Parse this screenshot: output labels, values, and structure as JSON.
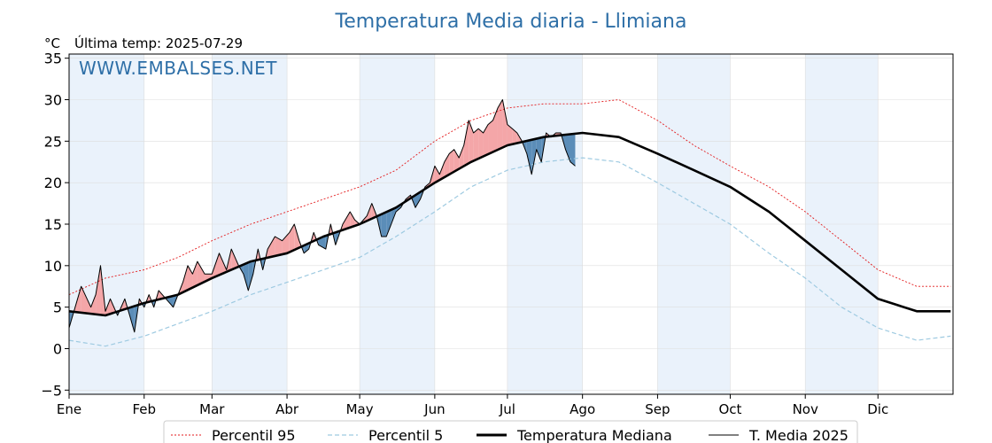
{
  "chart_data": {
    "type": "line",
    "title": "Temperatura Media diaria - Llimiana",
    "unit_label": "°C",
    "last_temp_label": "Última temp: 2025-07-29",
    "watermark": "WWW.EMBALSES.NET",
    "ylim": [
      -5.5,
      35.5
    ],
    "yticks": [
      -5,
      0,
      5,
      10,
      15,
      20,
      25,
      30,
      35
    ],
    "ytick_labels": [
      "−5",
      "0",
      "5",
      "10",
      "15",
      "20",
      "25",
      "30",
      "35"
    ],
    "xlim": [
      0,
      365
    ],
    "months": [
      {
        "label": "Ene",
        "start": 0
      },
      {
        "label": "Feb",
        "start": 31
      },
      {
        "label": "Mar",
        "start": 59
      },
      {
        "label": "Abr",
        "start": 90
      },
      {
        "label": "May",
        "start": 120
      },
      {
        "label": "Jun",
        "start": 151
      },
      {
        "label": "Jul",
        "start": 181
      },
      {
        "label": "Ago",
        "start": 212
      },
      {
        "label": "Sep",
        "start": 243
      },
      {
        "label": "Oct",
        "start": 273
      },
      {
        "label": "Nov",
        "start": 304
      },
      {
        "label": "Dic",
        "start": 334
      }
    ],
    "grid": true,
    "legend_position": "bottom-center",
    "colors": {
      "p95": "#e31a1c",
      "p5": "#9ecae1",
      "median": "#000000",
      "year": "#000000",
      "above_fill": "#f4a6a8",
      "below_fill": "#5b8db8",
      "band": "#eaf2fb"
    },
    "series": [
      {
        "name": "Percentil 95",
        "key": "p95",
        "points": [
          [
            0,
            6.5
          ],
          [
            15,
            8.5
          ],
          [
            31,
            9.5
          ],
          [
            45,
            11
          ],
          [
            59,
            13
          ],
          [
            75,
            15
          ],
          [
            90,
            16.5
          ],
          [
            105,
            18
          ],
          [
            120,
            19.5
          ],
          [
            135,
            21.5
          ],
          [
            151,
            25
          ],
          [
            166,
            27.5
          ],
          [
            181,
            29
          ],
          [
            196,
            29.5
          ],
          [
            212,
            29.5
          ],
          [
            227,
            30
          ],
          [
            243,
            27.5
          ],
          [
            258,
            24.5
          ],
          [
            273,
            22
          ],
          [
            289,
            19.5
          ],
          [
            304,
            16.5
          ],
          [
            319,
            13
          ],
          [
            334,
            9.5
          ],
          [
            350,
            7.5
          ],
          [
            364,
            7.5
          ]
        ]
      },
      {
        "name": "Percentil 5",
        "key": "p5",
        "points": [
          [
            0,
            1
          ],
          [
            15,
            0.3
          ],
          [
            31,
            1.5
          ],
          [
            45,
            3
          ],
          [
            59,
            4.5
          ],
          [
            75,
            6.5
          ],
          [
            90,
            8
          ],
          [
            105,
            9.5
          ],
          [
            120,
            11
          ],
          [
            135,
            13.5
          ],
          [
            151,
            16.5
          ],
          [
            166,
            19.5
          ],
          [
            181,
            21.5
          ],
          [
            196,
            22.5
          ],
          [
            212,
            23
          ],
          [
            227,
            22.5
          ],
          [
            243,
            20
          ],
          [
            258,
            17.5
          ],
          [
            273,
            15
          ],
          [
            289,
            11.5
          ],
          [
            304,
            8.5
          ],
          [
            319,
            5
          ],
          [
            334,
            2.5
          ],
          [
            350,
            1
          ],
          [
            364,
            1.5
          ]
        ]
      },
      {
        "name": "Temperatura Mediana",
        "key": "median",
        "points": [
          [
            0,
            4.5
          ],
          [
            15,
            4
          ],
          [
            31,
            5.5
          ],
          [
            45,
            6.5
          ],
          [
            59,
            8.5
          ],
          [
            75,
            10.5
          ],
          [
            90,
            11.5
          ],
          [
            105,
            13.5
          ],
          [
            120,
            15
          ],
          [
            135,
            17
          ],
          [
            151,
            20
          ],
          [
            166,
            22.5
          ],
          [
            181,
            24.5
          ],
          [
            196,
            25.5
          ],
          [
            212,
            26
          ],
          [
            227,
            25.5
          ],
          [
            243,
            23.5
          ],
          [
            258,
            21.5
          ],
          [
            273,
            19.5
          ],
          [
            289,
            16.5
          ],
          [
            304,
            13
          ],
          [
            319,
            9.5
          ],
          [
            334,
            6
          ],
          [
            350,
            4.5
          ],
          [
            364,
            4.5
          ]
        ]
      },
      {
        "name": "T. Media 2025",
        "key": "year",
        "points": [
          [
            0,
            2.5
          ],
          [
            5,
            7.5
          ],
          [
            9,
            5
          ],
          [
            11,
            6.5
          ],
          [
            13,
            10
          ],
          [
            15,
            4.5
          ],
          [
            17,
            6
          ],
          [
            20,
            4
          ],
          [
            23,
            6
          ],
          [
            25,
            4
          ],
          [
            27,
            2
          ],
          [
            29,
            6
          ],
          [
            31,
            5
          ],
          [
            33,
            6.5
          ],
          [
            35,
            5
          ],
          [
            37,
            7
          ],
          [
            40,
            6
          ],
          [
            43,
            5
          ],
          [
            45,
            6.5
          ],
          [
            47,
            8
          ],
          [
            49,
            10
          ],
          [
            51,
            9
          ],
          [
            53,
            10.5
          ],
          [
            56,
            9
          ],
          [
            59,
            9
          ],
          [
            62,
            11.5
          ],
          [
            65,
            9.5
          ],
          [
            67,
            12
          ],
          [
            70,
            10
          ],
          [
            72,
            9
          ],
          [
            74,
            7
          ],
          [
            76,
            9
          ],
          [
            78,
            12
          ],
          [
            80,
            9.5
          ],
          [
            82,
            12
          ],
          [
            85,
            13.5
          ],
          [
            88,
            13
          ],
          [
            91,
            14
          ],
          [
            93,
            15
          ],
          [
            95,
            13
          ],
          [
            97,
            11.5
          ],
          [
            99,
            12
          ],
          [
            101,
            14
          ],
          [
            103,
            12.5
          ],
          [
            106,
            12
          ],
          [
            108,
            15
          ],
          [
            110,
            12.5
          ],
          [
            113,
            15
          ],
          [
            116,
            16.5
          ],
          [
            118,
            15.5
          ],
          [
            120,
            15
          ],
          [
            123,
            16
          ],
          [
            125,
            17.5
          ],
          [
            127,
            16
          ],
          [
            129,
            13.5
          ],
          [
            131,
            13.5
          ],
          [
            133,
            15
          ],
          [
            135,
            16.5
          ],
          [
            137,
            17
          ],
          [
            139,
            18
          ],
          [
            141,
            18.5
          ],
          [
            143,
            17
          ],
          [
            145,
            18
          ],
          [
            147,
            19.5
          ],
          [
            149,
            20
          ],
          [
            151,
            22
          ],
          [
            153,
            21
          ],
          [
            155,
            22.5
          ],
          [
            157,
            23.5
          ],
          [
            159,
            24
          ],
          [
            161,
            23
          ],
          [
            163,
            24.5
          ],
          [
            165,
            27.5
          ],
          [
            167,
            26
          ],
          [
            169,
            26.5
          ],
          [
            171,
            26
          ],
          [
            173,
            27
          ],
          [
            175,
            27.5
          ],
          [
            177,
            29
          ],
          [
            179,
            30
          ],
          [
            181,
            27
          ],
          [
            183,
            26.5
          ],
          [
            185,
            26
          ],
          [
            187,
            25
          ],
          [
            189,
            23.5
          ],
          [
            191,
            21
          ],
          [
            193,
            24
          ],
          [
            195,
            22.5
          ],
          [
            197,
            26
          ],
          [
            199,
            25.5
          ],
          [
            201,
            26
          ],
          [
            203,
            26
          ],
          [
            205,
            24
          ],
          [
            207,
            22.5
          ],
          [
            209,
            22
          ]
        ]
      }
    ]
  }
}
